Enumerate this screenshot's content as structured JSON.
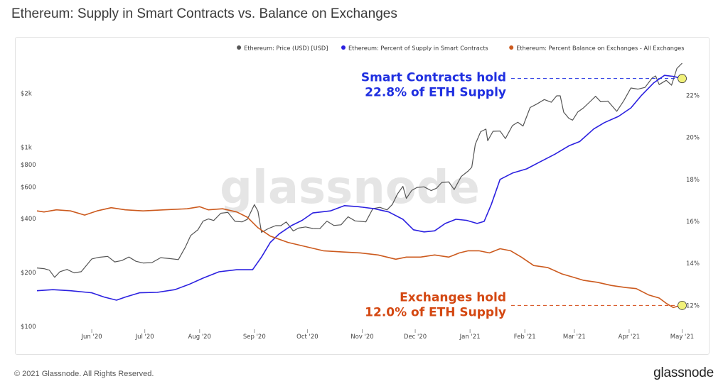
{
  "title": "Ethereum: Supply in Smart Contracts vs. Balance on Exchanges",
  "footer": {
    "copyright": "© 2021 Glassnode. All Rights Reserved.",
    "logo": "glassnode"
  },
  "watermark": "glassnode",
  "colors": {
    "price": "#555555",
    "smart": "#2b20e0",
    "exchange": "#cc5a1e",
    "annot_smart": "#1f2fe0",
    "annot_exchange": "#d44812",
    "marker": "#f1f17a"
  },
  "chart_data": {
    "type": "line",
    "title": "Ethereum: Supply in Smart Contracts vs. Balance on Exchanges",
    "x_range": [
      "2020-05-01",
      "2021-05-02"
    ],
    "x_ticks": [
      {
        "date": "2020-06-01",
        "label": "Jun '20"
      },
      {
        "date": "2020-07-01",
        "label": "Jul '20"
      },
      {
        "date": "2020-08-01",
        "label": "Aug '20"
      },
      {
        "date": "2020-09-01",
        "label": "Sep '20"
      },
      {
        "date": "2020-10-01",
        "label": "Oct '20"
      },
      {
        "date": "2020-11-01",
        "label": "Nov '20"
      },
      {
        "date": "2020-12-01",
        "label": "Dec '20"
      },
      {
        "date": "2021-01-01",
        "label": "Jan '21"
      },
      {
        "date": "2021-02-01",
        "label": "Feb '21"
      },
      {
        "date": "2021-03-01",
        "label": "Mar '21"
      },
      {
        "date": "2021-04-01",
        "label": "Apr '21"
      },
      {
        "date": "2021-05-01",
        "label": "May '21"
      }
    ],
    "y_left": {
      "scale": "log",
      "range": [
        100,
        3000
      ],
      "ticks": [
        {
          "value": 100,
          "label": "$100"
        },
        {
          "value": 200,
          "label": "$200"
        },
        {
          "value": 400,
          "label": "$400"
        },
        {
          "value": 600,
          "label": "$600"
        },
        {
          "value": 800,
          "label": "$800"
        },
        {
          "value": 1000,
          "label": "$1k"
        },
        {
          "value": 2000,
          "label": "$2k"
        }
      ]
    },
    "y_right": {
      "scale": "linear",
      "range": [
        11.0,
        23.6
      ],
      "ticks": [
        {
          "value": 12,
          "label": "12%"
        },
        {
          "value": 14,
          "label": "14%"
        },
        {
          "value": 16,
          "label": "16%"
        },
        {
          "value": 18,
          "label": "18%"
        },
        {
          "value": 20,
          "label": "20%"
        },
        {
          "value": 22,
          "label": "22%"
        }
      ]
    },
    "legend_position": "top-right",
    "series": [
      {
        "name": "Ethereum: Price (USD) [USD]",
        "axis": "left",
        "color": "#555555",
        "points": [
          [
            "2020-05-01",
            212
          ],
          [
            "2020-05-05",
            210
          ],
          [
            "2020-05-08",
            206
          ],
          [
            "2020-05-11",
            188
          ],
          [
            "2020-05-14",
            202
          ],
          [
            "2020-05-18",
            208
          ],
          [
            "2020-05-22",
            199
          ],
          [
            "2020-05-26",
            202
          ],
          [
            "2020-05-29",
            219
          ],
          [
            "2020-06-01",
            238
          ],
          [
            "2020-06-05",
            243
          ],
          [
            "2020-06-10",
            246
          ],
          [
            "2020-06-14",
            229
          ],
          [
            "2020-06-18",
            233
          ],
          [
            "2020-06-22",
            244
          ],
          [
            "2020-06-26",
            231
          ],
          [
            "2020-06-30",
            226
          ],
          [
            "2020-07-05",
            227
          ],
          [
            "2020-07-10",
            242
          ],
          [
            "2020-07-15",
            239
          ],
          [
            "2020-07-20",
            236
          ],
          [
            "2020-07-24",
            278
          ],
          [
            "2020-07-27",
            322
          ],
          [
            "2020-07-31",
            346
          ],
          [
            "2020-08-03",
            387
          ],
          [
            "2020-08-06",
            398
          ],
          [
            "2020-08-09",
            390
          ],
          [
            "2020-08-13",
            428
          ],
          [
            "2020-08-17",
            433
          ],
          [
            "2020-08-21",
            386
          ],
          [
            "2020-08-25",
            383
          ],
          [
            "2020-08-28",
            396
          ],
          [
            "2020-09-01",
            478
          ],
          [
            "2020-09-03",
            440
          ],
          [
            "2020-09-05",
            335
          ],
          [
            "2020-09-09",
            352
          ],
          [
            "2020-09-13",
            365
          ],
          [
            "2020-09-16",
            365
          ],
          [
            "2020-09-19",
            383
          ],
          [
            "2020-09-23",
            341
          ],
          [
            "2020-09-26",
            354
          ],
          [
            "2020-09-30",
            359
          ],
          [
            "2020-10-04",
            352
          ],
          [
            "2020-10-08",
            351
          ],
          [
            "2020-10-12",
            387
          ],
          [
            "2020-10-16",
            366
          ],
          [
            "2020-10-20",
            369
          ],
          [
            "2020-10-24",
            409
          ],
          [
            "2020-10-28",
            388
          ],
          [
            "2020-10-31",
            386
          ],
          [
            "2020-11-03",
            383
          ],
          [
            "2020-11-07",
            454
          ],
          [
            "2020-11-11",
            462
          ],
          [
            "2020-11-15",
            447
          ],
          [
            "2020-11-18",
            479
          ],
          [
            "2020-11-21",
            549
          ],
          [
            "2020-11-24",
            605
          ],
          [
            "2020-11-26",
            518
          ],
          [
            "2020-11-29",
            574
          ],
          [
            "2020-12-02",
            597
          ],
          [
            "2020-12-06",
            601
          ],
          [
            "2020-12-10",
            573
          ],
          [
            "2020-12-13",
            590
          ],
          [
            "2020-12-16",
            636
          ],
          [
            "2020-12-20",
            640
          ],
          [
            "2020-12-23",
            580
          ],
          [
            "2020-12-27",
            686
          ],
          [
            "2020-12-31",
            737
          ],
          [
            "2021-01-02",
            774
          ],
          [
            "2021-01-04",
            1041
          ],
          [
            "2021-01-07",
            1221
          ],
          [
            "2021-01-10",
            1263
          ],
          [
            "2021-01-11",
            1087
          ],
          [
            "2021-01-14",
            1228
          ],
          [
            "2021-01-18",
            1231
          ],
          [
            "2021-01-21",
            1117
          ],
          [
            "2021-01-25",
            1320
          ],
          [
            "2021-01-28",
            1378
          ],
          [
            "2021-01-31",
            1313
          ],
          [
            "2021-02-04",
            1666
          ],
          [
            "2021-02-08",
            1747
          ],
          [
            "2021-02-12",
            1845
          ],
          [
            "2021-02-16",
            1782
          ],
          [
            "2021-02-19",
            1937
          ],
          [
            "2021-02-21",
            1936
          ],
          [
            "2021-02-23",
            1569
          ],
          [
            "2021-02-26",
            1446
          ],
          [
            "2021-02-28",
            1416
          ],
          [
            "2021-03-03",
            1575
          ],
          [
            "2021-03-06",
            1653
          ],
          [
            "2021-03-10",
            1800
          ],
          [
            "2021-03-13",
            1924
          ],
          [
            "2021-03-16",
            1794
          ],
          [
            "2021-03-20",
            1808
          ],
          [
            "2021-03-25",
            1586
          ],
          [
            "2021-03-29",
            1820
          ],
          [
            "2021-04-02",
            2141
          ],
          [
            "2021-04-06",
            2110
          ],
          [
            "2021-04-10",
            2156
          ],
          [
            "2021-04-14",
            2433
          ],
          [
            "2021-04-16",
            2500
          ],
          [
            "2021-04-18",
            2237
          ],
          [
            "2021-04-22",
            2362
          ],
          [
            "2021-04-25",
            2218
          ],
          [
            "2021-04-28",
            2750
          ],
          [
            "2021-05-01",
            2945
          ]
        ]
      },
      {
        "name": "Ethereum: Percent of Supply in Smart Contracts",
        "axis": "right",
        "color": "#2b20e0",
        "points": [
          [
            "2020-05-01",
            12.7
          ],
          [
            "2020-05-10",
            12.75
          ],
          [
            "2020-05-20",
            12.7
          ],
          [
            "2020-06-01",
            12.6
          ],
          [
            "2020-06-08",
            12.4
          ],
          [
            "2020-06-15",
            12.25
          ],
          [
            "2020-06-20",
            12.4
          ],
          [
            "2020-06-28",
            12.6
          ],
          [
            "2020-07-08",
            12.62
          ],
          [
            "2020-07-18",
            12.75
          ],
          [
            "2020-07-26",
            13.0
          ],
          [
            "2020-08-03",
            13.3
          ],
          [
            "2020-08-12",
            13.6
          ],
          [
            "2020-08-22",
            13.7
          ],
          [
            "2020-08-31",
            13.7
          ],
          [
            "2020-09-05",
            14.3
          ],
          [
            "2020-09-10",
            15.0
          ],
          [
            "2020-09-15",
            15.4
          ],
          [
            "2020-09-22",
            15.8
          ],
          [
            "2020-09-28",
            16.05
          ],
          [
            "2020-10-04",
            16.4
          ],
          [
            "2020-10-14",
            16.5
          ],
          [
            "2020-10-22",
            16.75
          ],
          [
            "2020-10-30",
            16.7
          ],
          [
            "2020-11-08",
            16.6
          ],
          [
            "2020-11-16",
            16.45
          ],
          [
            "2020-11-24",
            16.1
          ],
          [
            "2020-11-30",
            15.6
          ],
          [
            "2020-12-06",
            15.5
          ],
          [
            "2020-12-12",
            15.55
          ],
          [
            "2020-12-18",
            15.9
          ],
          [
            "2020-12-24",
            16.1
          ],
          [
            "2020-12-30",
            16.05
          ],
          [
            "2021-01-05",
            15.9
          ],
          [
            "2021-01-09",
            16.0
          ],
          [
            "2021-01-13",
            16.8
          ],
          [
            "2021-01-18",
            18.0
          ],
          [
            "2021-01-25",
            18.3
          ],
          [
            "2021-02-02",
            18.5
          ],
          [
            "2021-02-10",
            18.85
          ],
          [
            "2021-02-18",
            19.2
          ],
          [
            "2021-02-26",
            19.6
          ],
          [
            "2021-03-04",
            19.8
          ],
          [
            "2021-03-12",
            20.4
          ],
          [
            "2021-03-18",
            20.7
          ],
          [
            "2021-03-26",
            21.0
          ],
          [
            "2021-04-02",
            21.4
          ],
          [
            "2021-04-08",
            22.0
          ],
          [
            "2021-04-15",
            22.6
          ],
          [
            "2021-04-21",
            22.95
          ],
          [
            "2021-04-26",
            22.9
          ],
          [
            "2021-05-01",
            22.8
          ]
        ]
      },
      {
        "name": "Ethereum: Percent Balance on Exchanges - All Exchanges",
        "axis": "right",
        "color": "#cc5a1e",
        "points": [
          [
            "2020-05-01",
            16.5
          ],
          [
            "2020-05-05",
            16.45
          ],
          [
            "2020-05-12",
            16.55
          ],
          [
            "2020-05-20",
            16.5
          ],
          [
            "2020-05-28",
            16.3
          ],
          [
            "2020-06-04",
            16.5
          ],
          [
            "2020-06-12",
            16.65
          ],
          [
            "2020-06-20",
            16.55
          ],
          [
            "2020-06-30",
            16.5
          ],
          [
            "2020-07-12",
            16.55
          ],
          [
            "2020-07-25",
            16.6
          ],
          [
            "2020-08-01",
            16.7
          ],
          [
            "2020-08-06",
            16.55
          ],
          [
            "2020-08-14",
            16.6
          ],
          [
            "2020-08-22",
            16.45
          ],
          [
            "2020-08-28",
            16.2
          ],
          [
            "2020-09-03",
            15.7
          ],
          [
            "2020-09-10",
            15.3
          ],
          [
            "2020-09-20",
            15.0
          ],
          [
            "2020-09-30",
            14.8
          ],
          [
            "2020-10-10",
            14.6
          ],
          [
            "2020-10-20",
            14.55
          ],
          [
            "2020-10-31",
            14.5
          ],
          [
            "2020-11-10",
            14.4
          ],
          [
            "2020-11-20",
            14.2
          ],
          [
            "2020-11-26",
            14.3
          ],
          [
            "2020-12-04",
            14.3
          ],
          [
            "2020-12-12",
            14.4
          ],
          [
            "2020-12-20",
            14.3
          ],
          [
            "2020-12-26",
            14.5
          ],
          [
            "2020-12-31",
            14.6
          ],
          [
            "2021-01-06",
            14.6
          ],
          [
            "2021-01-12",
            14.5
          ],
          [
            "2021-01-18",
            14.7
          ],
          [
            "2021-01-24",
            14.6
          ],
          [
            "2021-01-30",
            14.3
          ],
          [
            "2021-02-06",
            13.9
          ],
          [
            "2021-02-14",
            13.8
          ],
          [
            "2021-02-22",
            13.5
          ],
          [
            "2021-02-28",
            13.35
          ],
          [
            "2021-03-06",
            13.2
          ],
          [
            "2021-03-14",
            13.1
          ],
          [
            "2021-03-22",
            12.95
          ],
          [
            "2021-03-30",
            12.85
          ],
          [
            "2021-04-05",
            12.8
          ],
          [
            "2021-04-12",
            12.5
          ],
          [
            "2021-04-18",
            12.35
          ],
          [
            "2021-04-22",
            12.1
          ],
          [
            "2021-04-26",
            11.9
          ],
          [
            "2021-04-30",
            12.0
          ],
          [
            "2021-05-01",
            12.0
          ]
        ]
      }
    ],
    "annotations": [
      {
        "text_line1": "Smart Contracts hold",
        "text_line2": "22.8% of ETH Supply",
        "series": "smart",
        "value": 22.8,
        "at": "2021-05-01"
      },
      {
        "text_line1": "Exchanges hold",
        "text_line2": "12.0% of ETH Supply",
        "series": "exchange",
        "value": 12.0,
        "at": "2021-05-01"
      }
    ]
  }
}
